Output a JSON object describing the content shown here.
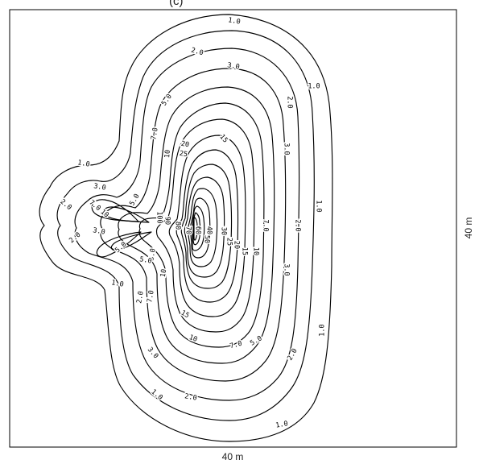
{
  "figure": {
    "x_extent_label": "40 m",
    "y_extent_label": "40 m",
    "top_caption_fragment": "(c)"
  },
  "contour_levels": [
    "1.0",
    "2.0",
    "3.0",
    "5.0",
    "7.0",
    "10",
    "15",
    "20",
    "25",
    "30",
    "40",
    "50",
    "60",
    "70",
    "80",
    "90",
    "100"
  ],
  "labels": {
    "l_1_0_top": "1.0",
    "l_2_0_top": "2.0",
    "l_3_0_top": "3.0",
    "l_1_0_right_upper": "1.0",
    "l_2_0_right": "2.0",
    "l_5_0_upper": "5.0",
    "l_7_0_upper": "7.0",
    "l_10_upper": "10",
    "l_15_upper": "15",
    "l_20_upper": "20",
    "l_25_upper": "25",
    "l_3_0_right": "3.0",
    "l_1_0_left_lobe_up": "1.0",
    "l_3_0_left_lobe": "3.0",
    "l_2_0_left_lobe": "2.0",
    "l_7_0_left_lobe": "7.0",
    "l_10_left_lobe": "10",
    "l_5_0_left_lobe": "5.0",
    "l_1_0_far_right": "1.0",
    "l_2_0_far_right": "2.0",
    "l_3_0_far_right": "3.0",
    "l_7_0_right": "7.0",
    "l_10_center_right": "10",
    "l_15_center_right": "15",
    "l_20_center_right": "20",
    "l_25_center_right": "25",
    "l_30_center": "30",
    "l_40_center": "40",
    "l_50_center": "50",
    "l_60_center": "60",
    "l_70_center": "70",
    "l_80_center": "80",
    "l_90_center": "90",
    "l_100_center": "100",
    "l_3_0_lower_lobe": "3.0",
    "l_5_0_lower_lobe": "5.0",
    "l_2_0_lower_lobe": "2.0",
    "l_1_0_lower_left": "1.0",
    "l_2_0_lower_left": "2.0",
    "l_3_0_lower_left": "3.0",
    "l_5_0_lower_left": "5.0",
    "l_7_0_lower_left": "7.0",
    "l_10_lower_left": "10",
    "l_15_lower": "15",
    "l_10_lower": "10",
    "l_7_0_lower": "7.0",
    "l_5_0_lower": "5.0",
    "l_3_0_lower": "3.0",
    "l_2_0_lower": "2.0",
    "l_1_0_lower_right_edge": "1.0",
    "l_1_0_bottom_left": "1.0",
    "l_2_0_bottom": "2.0",
    "l_1_0_bottom": "1.0"
  }
}
